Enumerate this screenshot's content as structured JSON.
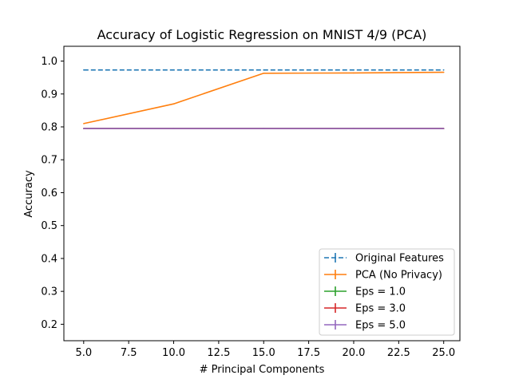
{
  "chart_data": {
    "type": "line",
    "title": "Accuracy of Logistic Regression on MNIST 4/9 (PCA)",
    "xlabel": "# Principal Components",
    "ylabel": "Accuracy",
    "xlim": [
      3.9,
      25.9
    ],
    "ylim": [
      0.15,
      1.045
    ],
    "xticks": [
      5.0,
      7.5,
      10.0,
      12.5,
      15.0,
      17.5,
      20.0,
      22.5,
      25.0
    ],
    "xtick_labels": [
      "5.0",
      "7.5",
      "10.0",
      "12.5",
      "15.0",
      "17.5",
      "20.0",
      "22.5",
      "25.0"
    ],
    "yticks": [
      0.2,
      0.3,
      0.4,
      0.5,
      0.6,
      0.7,
      0.8,
      0.9,
      1.0
    ],
    "ytick_labels": [
      "0.2",
      "0.3",
      "0.4",
      "0.5",
      "0.6",
      "0.7",
      "0.8",
      "0.9",
      "1.0"
    ],
    "grid": false,
    "legend_position": "lower-right",
    "series": [
      {
        "name": "Original Features",
        "color": "#1f77b4",
        "dashed": true,
        "x": [
          5,
          10,
          15,
          20,
          25
        ],
        "y": [
          0.973,
          0.973,
          0.973,
          0.973,
          0.973
        ]
      },
      {
        "name": "PCA (No Privacy)",
        "color": "#ff7f0e",
        "dashed": false,
        "x": [
          5,
          10,
          15,
          20,
          25
        ],
        "y": [
          0.81,
          0.87,
          0.963,
          0.964,
          0.966
        ]
      },
      {
        "name": "Eps = 1.0",
        "color": "#2ca02c",
        "dashed": false,
        "x": [
          5,
          10,
          15,
          20,
          25
        ],
        "y": [
          0.795,
          0.795,
          0.795,
          0.795,
          0.795
        ]
      },
      {
        "name": "Eps = 3.0",
        "color": "#d62728",
        "dashed": false,
        "x": [
          5,
          10,
          15,
          20,
          25
        ],
        "y": [
          0.795,
          0.795,
          0.795,
          0.795,
          0.795
        ]
      },
      {
        "name": "Eps = 5.0",
        "color": "#9467bd",
        "dashed": false,
        "x": [
          5,
          10,
          15,
          20,
          25
        ],
        "y": [
          0.795,
          0.795,
          0.795,
          0.795,
          0.795
        ]
      }
    ]
  }
}
